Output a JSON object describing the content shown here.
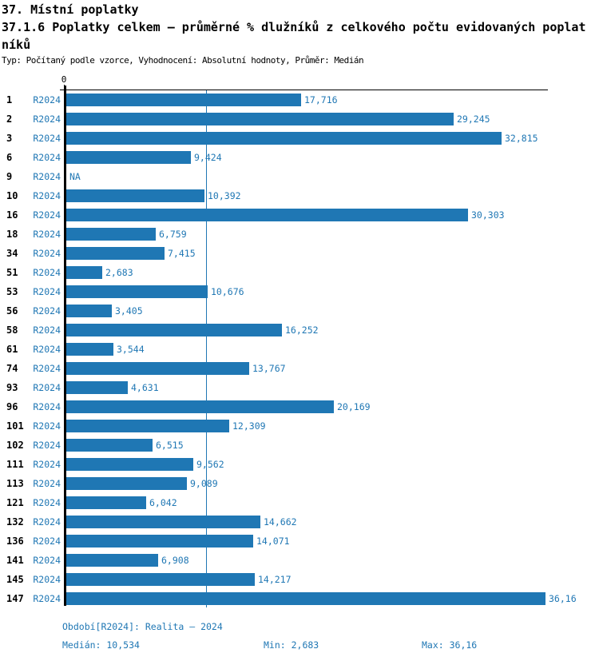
{
  "header": {
    "title": "37. Místní poplatky",
    "subtitle_line1": "37.1.6 Poplatky celkem – průměrné % dlužníků z celkového počtu evidovaných poplat",
    "subtitle_line2": "níků",
    "meta": "Typ: Počítaný podle vzorce, Vyhodnocení: Absolutní hodnoty, Průměr: Medián"
  },
  "chart_data": {
    "type": "bar",
    "orientation": "horizontal",
    "title": "37.1.6 Poplatky celkem – průměrné % dlužníků z celkového počtu evidovaných poplatníků",
    "period_label": "R2024",
    "categories": [
      "1",
      "2",
      "3",
      "6",
      "9",
      "10",
      "16",
      "18",
      "34",
      "51",
      "53",
      "56",
      "58",
      "61",
      "74",
      "93",
      "96",
      "101",
      "102",
      "111",
      "113",
      "121",
      "132",
      "136",
      "141",
      "145",
      "147"
    ],
    "values": [
      17.716,
      29.245,
      32.815,
      9.424,
      null,
      10.392,
      30.303,
      6.759,
      7.415,
      2.683,
      10.676,
      3.405,
      16.252,
      3.544,
      13.767,
      4.631,
      20.169,
      12.309,
      6.515,
      9.562,
      9.089,
      6.042,
      14.662,
      14.071,
      6.908,
      14.217,
      36.16
    ],
    "value_labels": [
      "17,716",
      "29,245",
      "32,815",
      "9,424",
      "NA",
      "10,392",
      "30,303",
      "6,759",
      "7,415",
      "2,683",
      "10,676",
      "3,405",
      "16,252",
      "3,544",
      "13,767",
      "4,631",
      "20,169",
      "12,309",
      "6,515",
      "9,562",
      "9,089",
      "6,042",
      "14,662",
      "14,071",
      "6,908",
      "14,217",
      "36,16"
    ],
    "median": 10.534,
    "min": 2.683,
    "max": 36.16,
    "axis": {
      "zero_label": "0",
      "xlim": [
        0,
        36.4
      ],
      "grid": false
    },
    "bar_color": "#1f77b4",
    "median_line_color": "#1f77b4",
    "text_color": "#1f77b4"
  },
  "footer": {
    "period_info": "Období[R2024]: Realita – 2024",
    "median_label": "Medián: 10,534",
    "min_label": "Min: 2,683",
    "max_label": "Max: 36,16"
  }
}
